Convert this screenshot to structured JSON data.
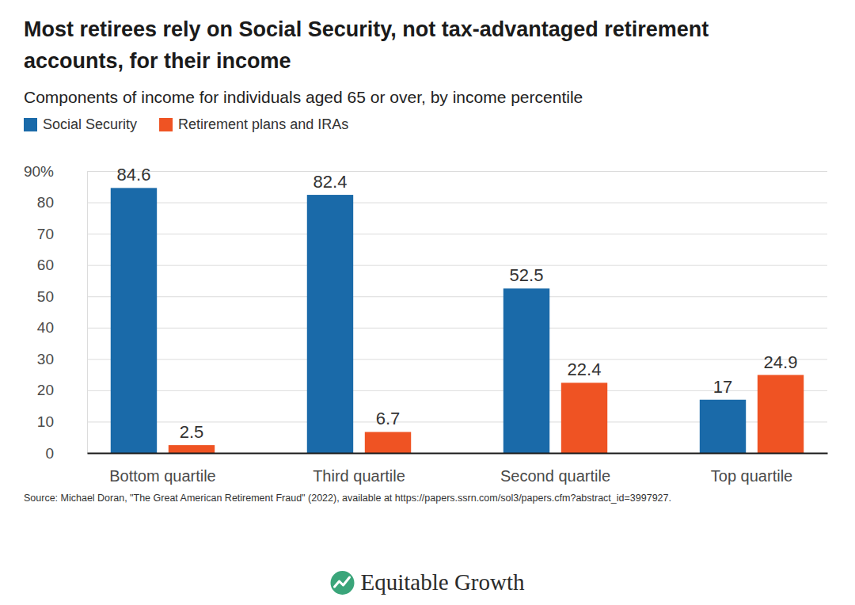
{
  "chart_data": {
    "type": "bar",
    "title": [
      "Most retirees rely on Social Security, not tax-advantaged retirement",
      "accounts, for their income"
    ],
    "subtitle": "Components of income for individuals aged 65 or over, by income percentile",
    "categories": [
      "Bottom quartile",
      "Third quartile",
      "Second quartile",
      "Top quartile"
    ],
    "series": [
      {
        "name": "Social Security",
        "color": "#1a6aa9",
        "values": [
          84.6,
          82.4,
          52.5,
          17
        ]
      },
      {
        "name": "Retirement plans and IRAs",
        "color": "#ef5323",
        "values": [
          2.5,
          6.7,
          22.4,
          24.9
        ]
      }
    ],
    "ylim": [
      0,
      90
    ],
    "yticks": [
      0,
      10,
      20,
      30,
      40,
      50,
      60,
      70,
      80,
      {
        "value": 90,
        "label": "90%"
      }
    ],
    "grid": true,
    "legend": "top-left",
    "data_labels": true,
    "source": "Source: Michael Doran, \"The Great American Retirement Fraud\" (2022), available at https://papers.ssrn.com/sol3/papers.cfm?abstract_id=3997927.",
    "branding": "Equitable Growth"
  }
}
